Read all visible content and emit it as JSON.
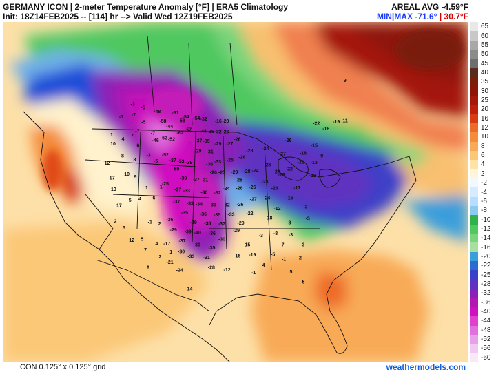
{
  "header": {
    "title_line1": "GERMANY ICON | 2-meter Temperature Anomaly [°F] | ERA5 Climatology",
    "title_line2": "Init: 18Z14FEB2025 -- [114] hr --> Valid Wed 12Z19FEB2025",
    "areal_avg": "AREAL AVG -4.59°F",
    "minmax_label": "MIN|MAX",
    "min_value": "-71.6°",
    "minmax_sep": "|",
    "max_value": "30.7°F"
  },
  "footer": {
    "grid_note": "ICON 0.125° x 0.125° grid",
    "source": "weathermodels.com"
  },
  "colorbar": {
    "levels": [
      "65",
      "60",
      "55",
      "50",
      "45",
      "40",
      "35",
      "30",
      "25",
      "20",
      "16",
      "12",
      "10",
      "8",
      "6",
      "4",
      "2",
      "-2",
      "-4",
      "-6",
      "-8",
      "-10",
      "-12",
      "-14",
      "-16",
      "-20",
      "-22",
      "-25",
      "-28",
      "-32",
      "-36",
      "-40",
      "-44",
      "-48",
      "-52",
      "-56",
      "-60"
    ],
    "colors": [
      "#e8e8e8",
      "#c8c8c8",
      "#a8a8a8",
      "#8a8a8a",
      "#6e6e6e",
      "#5a2a1a",
      "#7a1e0a",
      "#8e1408",
      "#a4180a",
      "#c01e0c",
      "#d83a14",
      "#ee6a28",
      "#f48c3a",
      "#f8aa56",
      "#fbc878",
      "#fde3a4",
      "#fff6d8",
      "#f2f8ff",
      "#d6ebff",
      "#b8ddff",
      "#8ccaf0",
      "#2fb24a",
      "#50c860",
      "#7ad47a",
      "#a6e0a0",
      "#3a9edb",
      "#2a6cd0",
      "#3c40c8",
      "#6030c0",
      "#8a20b8",
      "#b018b0",
      "#d010c0",
      "#e040d0",
      "#e070dc",
      "#e8a0e8",
      "#f0c8f0",
      "#f8e8f8"
    ]
  },
  "map_values": {
    "points": [
      {
        "t": "-61",
        "lon": -109,
        "lat": 49.3
      },
      {
        "t": "-54",
        "lon": -106,
        "lat": 49.0
      },
      {
        "t": "-58",
        "lon": -107,
        "lat": 48.5
      },
      {
        "t": "-54",
        "lon": -103,
        "lat": 49.0
      },
      {
        "t": "-32",
        "lon": -101,
        "lat": 49.0
      },
      {
        "t": "-16",
        "lon": -97,
        "lat": 48.8
      },
      {
        "t": "-20",
        "lon": -95,
        "lat": 48.8
      },
      {
        "t": "-48",
        "lon": -114,
        "lat": 49.0
      },
      {
        "t": "-58",
        "lon": -112,
        "lat": 48.0
      },
      {
        "t": "-44",
        "lon": -110,
        "lat": 47.5
      },
      {
        "t": "-62",
        "lon": -107,
        "lat": 47.0
      },
      {
        "t": "-57",
        "lon": -105,
        "lat": 47.5
      },
      {
        "t": "-48",
        "lon": -101,
        "lat": 47.5
      },
      {
        "t": "-36",
        "lon": -99,
        "lat": 47.5
      },
      {
        "t": "-32",
        "lon": -97,
        "lat": 47.5
      },
      {
        "t": "-26",
        "lon": -95,
        "lat": 47.5
      },
      {
        "t": "-52",
        "lon": -109,
        "lat": 46.0
      },
      {
        "t": "-37",
        "lon": -102,
        "lat": 46.3
      },
      {
        "t": "-35",
        "lon": -100,
        "lat": 46.3
      },
      {
        "t": "-29",
        "lon": -97,
        "lat": 46.0
      },
      {
        "t": "-46",
        "lon": -113,
        "lat": 45.5
      },
      {
        "t": "-62",
        "lon": -111,
        "lat": 46.0
      },
      {
        "t": "-29",
        "lon": -102,
        "lat": 45.0
      },
      {
        "t": "-31",
        "lon": -99,
        "lat": 45.0
      },
      {
        "t": "-27",
        "lon": -94,
        "lat": 46.0
      },
      {
        "t": "-26",
        "lon": -92,
        "lat": 46.5
      },
      {
        "t": "-52",
        "lon": -110,
        "lat": 44.0
      },
      {
        "t": "-37",
        "lon": -108,
        "lat": 43.5
      },
      {
        "t": "-53",
        "lon": -106,
        "lat": 43.5
      },
      {
        "t": "-39",
        "lon": -104,
        "lat": 43.5
      },
      {
        "t": "-36",
        "lon": -99,
        "lat": 43.5
      },
      {
        "t": "-33",
        "lon": -97,
        "lat": 43.8
      },
      {
        "t": "-26",
        "lon": -94,
        "lat": 44.0
      },
      {
        "t": "-26",
        "lon": -91,
        "lat": 44.3
      },
      {
        "t": "-28",
        "lon": -89,
        "lat": 45.0
      },
      {
        "t": "-24",
        "lon": -85,
        "lat": 45.0
      },
      {
        "t": "-59",
        "lon": -107,
        "lat": 42.5
      },
      {
        "t": "-39",
        "lon": -105,
        "lat": 41.5
      },
      {
        "t": "-37",
        "lon": -102,
        "lat": 41.5
      },
      {
        "t": "-31",
        "lon": -100,
        "lat": 41.5
      },
      {
        "t": "-26",
        "lon": -98,
        "lat": 42.5
      },
      {
        "t": "-25",
        "lon": -96,
        "lat": 42.5
      },
      {
        "t": "-29",
        "lon": -93,
        "lat": 42.5
      },
      {
        "t": "-28",
        "lon": -90,
        "lat": 42.5
      },
      {
        "t": "-25",
        "lon": -92,
        "lat": 41.5
      },
      {
        "t": "-24",
        "lon": -88,
        "lat": 42.5
      },
      {
        "t": "-28",
        "lon": -85,
        "lat": 43.0
      },
      {
        "t": "-28",
        "lon": -83,
        "lat": 42.0
      },
      {
        "t": "-25",
        "lon": -109,
        "lat": 40.5
      },
      {
        "t": "-37",
        "lon": -106,
        "lat": 40.0
      },
      {
        "t": "-33",
        "lon": -104,
        "lat": 40.0
      },
      {
        "t": "-30",
        "lon": -100,
        "lat": 40.0
      },
      {
        "t": "-32",
        "lon": -97,
        "lat": 40.0
      },
      {
        "t": "-24",
        "lon": -95,
        "lat": 40.5
      },
      {
        "t": "-26",
        "lon": -92,
        "lat": 40.5
      },
      {
        "t": "-25",
        "lon": -89,
        "lat": 40.5
      },
      {
        "t": "-23",
        "lon": -86,
        "lat": 41.0
      },
      {
        "t": "-37",
        "lon": -106,
        "lat": 38.5
      },
      {
        "t": "-33",
        "lon": -103,
        "lat": 38.5
      },
      {
        "t": "-34",
        "lon": -101,
        "lat": 38.5
      },
      {
        "t": "-33",
        "lon": -98,
        "lat": 38.5
      },
      {
        "t": "-32",
        "lon": -95,
        "lat": 38.5
      },
      {
        "t": "-26",
        "lon": -92,
        "lat": 38.5
      },
      {
        "t": "-27",
        "lon": -89,
        "lat": 39.0
      },
      {
        "t": "-24",
        "lon": -86,
        "lat": 39.0
      },
      {
        "t": "-23",
        "lon": -84,
        "lat": 40.0
      },
      {
        "t": "-35",
        "lon": -104,
        "lat": 37.3
      },
      {
        "t": "-36",
        "lon": -100,
        "lat": 37.3
      },
      {
        "t": "-35",
        "lon": -97,
        "lat": 37.3
      },
      {
        "t": "-33",
        "lon": -94,
        "lat": 37.3
      },
      {
        "t": "-22",
        "lon": -90,
        "lat": 37.3
      },
      {
        "t": "-36",
        "lon": -107,
        "lat": 36.2
      },
      {
        "t": "-39",
        "lon": -102,
        "lat": 36.2
      },
      {
        "t": "-38",
        "lon": -99,
        "lat": 36.2
      },
      {
        "t": "-37",
        "lon": -96,
        "lat": 36.2
      },
      {
        "t": "-29",
        "lon": -92,
        "lat": 36.2
      },
      {
        "t": "-29",
        "lon": -106,
        "lat": 35.0
      },
      {
        "t": "-39",
        "lon": -103,
        "lat": 35.0
      },
      {
        "t": "-40",
        "lon": -101,
        "lat": 35.0
      },
      {
        "t": "-36",
        "lon": -98,
        "lat": 35.0
      },
      {
        "t": "-30",
        "lon": -96,
        "lat": 34.3
      },
      {
        "t": "-29",
        "lon": -93,
        "lat": 35.3
      },
      {
        "t": "-37",
        "lon": -104,
        "lat": 33.8
      },
      {
        "t": "-30",
        "lon": -101,
        "lat": 33.5
      },
      {
        "t": "-35",
        "lon": -98,
        "lat": 33.2
      },
      {
        "t": "-30",
        "lon": -104,
        "lat": 32.5
      },
      {
        "t": "-33",
        "lon": -102,
        "lat": 32.0
      },
      {
        "t": "-31",
        "lon": -99,
        "lat": 32.0
      },
      {
        "t": "-28",
        "lon": -98,
        "lat": 30.8
      },
      {
        "t": "-16",
        "lon": -93,
        "lat": 32.2
      },
      {
        "t": "-15",
        "lon": -91,
        "lat": 33.5
      },
      {
        "t": "-19",
        "lon": -90,
        "lat": 32.2
      },
      {
        "t": "-12",
        "lon": -95,
        "lat": 30.5
      },
      {
        "t": "-24",
        "lon": -104,
        "lat": 30.2
      },
      {
        "t": "-21",
        "lon": -106,
        "lat": 31.0
      },
      {
        "t": "-17",
        "lon": -107,
        "lat": 33.2
      },
      {
        "t": "-3",
        "lon": -88,
        "lat": 34.5
      },
      {
        "t": "-8",
        "lon": -85,
        "lat": 34.5
      },
      {
        "t": "-8",
        "lon": -82,
        "lat": 35.5
      },
      {
        "t": "-5",
        "lon": -78,
        "lat": 35.5
      },
      {
        "t": "-18",
        "lon": -86,
        "lat": 36.5
      },
      {
        "t": "-12",
        "lon": -84,
        "lat": 37.5
      },
      {
        "t": "-15",
        "lon": -81,
        "lat": 38.5
      },
      {
        "t": "-17",
        "lon": -79,
        "lat": 39.5
      },
      {
        "t": "-29",
        "lon": -82,
        "lat": 41.5
      },
      {
        "t": "-22",
        "lon": -80,
        "lat": 42.0
      },
      {
        "t": "-21",
        "lon": -77,
        "lat": 42.5
      },
      {
        "t": "-18",
        "lon": -76,
        "lat": 43.5
      },
      {
        "t": "-13",
        "lon": -74,
        "lat": 42.0
      },
      {
        "t": "-9",
        "lon": -72,
        "lat": 42.5
      },
      {
        "t": "-12",
        "lon": -75,
        "lat": 40.5
      },
      {
        "t": "-15",
        "lon": -73,
        "lat": 44.0
      },
      {
        "t": "-18",
        "lon": -69,
        "lat": 45.5
      },
      {
        "t": "-22",
        "lon": -71,
        "lat": 46.5
      },
      {
        "t": "-26",
        "lon": -79,
        "lat": 45.5
      },
      {
        "t": "-27",
        "lon": -81,
        "lat": 44.0
      },
      {
        "t": "-19",
        "lon": -66,
        "lat": 45.8
      },
      {
        "t": "-11",
        "lon": -64,
        "lat": 45.5
      },
      {
        "t": "9",
        "lon": -60,
        "lat": 50.0
      },
      {
        "t": "-3",
        "lon": -82,
        "lat": 34.0
      },
      {
        "t": "-7",
        "lon": -84,
        "lat": 33.0
      },
      {
        "t": "-5",
        "lon": -86,
        "lat": 32.0
      },
      {
        "t": "-3",
        "lon": -80,
        "lat": 32.5
      },
      {
        "t": "-1",
        "lon": -84,
        "lat": 31.2
      },
      {
        "t": "-2",
        "lon": -81,
        "lat": 31.0
      },
      {
        "t": "5",
        "lon": -83,
        "lat": 29.5
      },
      {
        "t": "5",
        "lon": -81,
        "lat": 28.0
      },
      {
        "t": "4",
        "lon": -88,
        "lat": 30.8
      },
      {
        "t": "-3",
        "lon": -78,
        "lat": 37.0
      },
      {
        "t": "-3",
        "lon": -121,
        "lat": 49.0
      },
      {
        "t": "-5",
        "lon": -118,
        "lat": 49.0
      },
      {
        "t": "-7",
        "lon": -120,
        "lat": 47.8
      },
      {
        "t": "-1",
        "lon": -123,
        "lat": 47.0
      },
      {
        "t": "-5",
        "lon": -117,
        "lat": 47.3
      },
      {
        "t": "-7",
        "lon": -118,
        "lat": 46.0
      },
      {
        "t": "-7",
        "lon": -114,
        "lat": 46.3
      },
      {
        "t": "1",
        "lon": -124,
        "lat": 44.5
      },
      {
        "t": "4",
        "lon": -121,
        "lat": 44.5
      },
      {
        "t": "7",
        "lon": -119,
        "lat": 45.3
      },
      {
        "t": "6",
        "lon": -117,
        "lat": 44.3
      },
      {
        "t": "10",
        "lon": -123,
        "lat": 43.5
      },
      {
        "t": "8",
        "lon": -120,
        "lat": 42.5
      },
      {
        "t": "8",
        "lon": -117,
        "lat": 42.5
      },
      {
        "t": "-3",
        "lon": -114,
        "lat": 43.5
      },
      {
        "t": "-5",
        "lon": -112,
        "lat": 43.0
      },
      {
        "t": "12",
        "lon": -123,
        "lat": 41.0
      },
      {
        "t": "17",
        "lon": -121,
        "lat": 39.5
      },
      {
        "t": "10",
        "lon": -118,
        "lat": 40.5
      },
      {
        "t": "9",
        "lon": -116,
        "lat": 40.5
      },
      {
        "t": "13",
        "lon": -120,
        "lat": 38.2
      },
      {
        "t": "17",
        "lon": -118,
        "lat": 36.5
      },
      {
        "t": "5",
        "lon": -116,
        "lat": 37.5
      },
      {
        "t": "4",
        "lon": -114,
        "lat": 38.0
      },
      {
        "t": "6",
        "lon": -111,
        "lat": 38.5
      },
      {
        "t": "1",
        "lon": -113,
        "lat": 39.5
      },
      {
        "t": "-1",
        "lon": -110,
        "lat": 40.0
      },
      {
        "t": "2",
        "lon": -118,
        "lat": 34.5
      },
      {
        "t": "5",
        "lon": -116,
        "lat": 34.0
      },
      {
        "t": "12",
        "lon": -114,
        "lat": 32.8
      },
      {
        "t": "5",
        "lon": -112,
        "lat": 33.2
      },
      {
        "t": "7",
        "lon": -111,
        "lat": 32.0
      },
      {
        "t": "4",
        "lon": -109,
        "lat": 33.0
      },
      {
        "t": "2",
        "lon": -109,
        "lat": 35.5
      },
      {
        "t": "-1",
        "lon": -111,
        "lat": 35.5
      },
      {
        "t": "2",
        "lon": -108,
        "lat": 31.5
      },
      {
        "t": "5",
        "lon": -110,
        "lat": 30.0
      },
      {
        "t": "1",
        "lon": -106,
        "lat": 32.3
      },
      {
        "t": "-14",
        "lon": -102,
        "lat": 28.0
      },
      {
        "t": "-1",
        "lon": -90,
        "lat": 30.0
      }
    ]
  }
}
